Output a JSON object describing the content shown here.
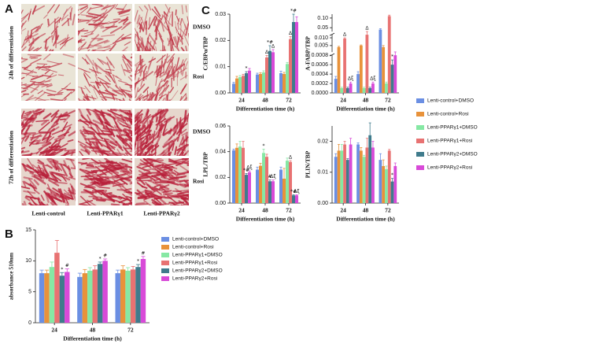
{
  "panel_labels": [
    "A",
    "B",
    "C"
  ],
  "panel_a": {
    "row_groups": [
      "24h of differentiation",
      "72h of differentiation"
    ],
    "row_labels": [
      "DMSO",
      "Rosi",
      "DMSO",
      "Rosi"
    ],
    "column_labels": [
      "Lenti-control",
      "Lenti-PPARγ1",
      "Lenti-PPARγ2"
    ]
  },
  "chart_data": [
    {
      "type": "bar",
      "ylabel": "absorbance 510nm",
      "xlabel": "Differentiation time (h)",
      "legend": "right",
      "categories": [
        "24",
        "48",
        "72"
      ],
      "ylim": [
        0,
        15
      ],
      "yticks": [
        0,
        5,
        10,
        15
      ],
      "series": [
        {
          "name": "Lenti-control+DMSO",
          "color": "#6b8fe3",
          "values": [
            8.0,
            7.4,
            8.0
          ],
          "errors": [
            0.5,
            0.6,
            0.5
          ],
          "annotations": [
            null,
            null,
            null
          ]
        },
        {
          "name": "Lenti-control+Rosi",
          "color": "#e8923a",
          "values": [
            8.0,
            8.0,
            8.6
          ],
          "errors": [
            0.5,
            0.6,
            0.6
          ],
          "annotations": [
            null,
            null,
            null
          ]
        },
        {
          "name": "Lenti-PPARγ1+DMSO",
          "color": "#86e8a4",
          "values": [
            9.0,
            8.4,
            8.4
          ],
          "errors": [
            0.8,
            0.5,
            0.5
          ],
          "annotations": [
            null,
            null,
            null
          ]
        },
        {
          "name": "Lenti-PPARγ1+Rosi",
          "color": "#e87272",
          "values": [
            11.3,
            8.6,
            8.6
          ],
          "errors": [
            2.0,
            0.6,
            0.5
          ],
          "annotations": [
            null,
            null,
            null
          ]
        },
        {
          "name": "Lenti-PPARγ2+DMSO",
          "color": "#3f7b8c",
          "values": [
            7.6,
            9.5,
            9.0
          ],
          "errors": [
            0.5,
            0.3,
            0.4
          ],
          "annotations": [
            "*",
            "*",
            "*"
          ]
        },
        {
          "name": "Lenti-PPARγ2+Rosi",
          "color": "#d84ad8",
          "values": [
            8.2,
            10.0,
            10.3
          ],
          "errors": [
            0.5,
            0.3,
            0.4
          ],
          "annotations": [
            "#",
            "#",
            "#"
          ]
        }
      ]
    },
    {
      "type": "bar",
      "ylabel": "C/EBPα/TBP",
      "xlabel": "Differentiation time (h)",
      "categories": [
        "24",
        "48",
        "72"
      ],
      "ylim": [
        0,
        0.03
      ],
      "yticks": [
        {
          "value": 0,
          "label": "0.00"
        },
        {
          "value": 0.01,
          "label": "0.01"
        },
        {
          "value": 0.02,
          "label": "0.02"
        },
        {
          "value": 0.03,
          "label": "0.03"
        }
      ],
      "series": [
        {
          "name": "Lenti-control+DMSO",
          "color": "#6b8fe3",
          "values": [
            0.0035,
            0.007,
            0.0075
          ],
          "errors": [
            0.0005,
            0.0005,
            0.0008
          ],
          "annotations": [
            null,
            null,
            null
          ]
        },
        {
          "name": "Lenti-control+Rosi",
          "color": "#e8923a",
          "values": [
            0.0055,
            0.0072,
            0.0072
          ],
          "errors": [
            0.0008,
            0.0005,
            0.0006
          ],
          "annotations": [
            null,
            null,
            null
          ]
        },
        {
          "name": "Lenti-PPARγ1+DMSO",
          "color": "#86e8a4",
          "values": [
            0.006,
            0.0078,
            0.011
          ],
          "errors": [
            0.0006,
            0.0006,
            0.0006
          ],
          "annotations": [
            null,
            null,
            null
          ]
        },
        {
          "name": "Lenti-PPARγ1+Rosi",
          "color": "#e87272",
          "values": [
            0.0065,
            0.0135,
            0.0205
          ],
          "errors": [
            0.0006,
            0.0008,
            0.001
          ],
          "annotations": [
            null,
            "Δ",
            "Δ"
          ]
        },
        {
          "name": "Lenti-PPARγ2+DMSO",
          "color": "#3f7b8c",
          "values": [
            0.0075,
            0.016,
            0.027
          ],
          "errors": [
            0.0006,
            0.002,
            0.003
          ],
          "annotations": [
            "*",
            "*#",
            "*#"
          ]
        },
        {
          "name": "Lenti-PPARγ2+Rosi",
          "color": "#d84ad8",
          "values": [
            0.0085,
            0.0155,
            0.027
          ],
          "errors": [
            0.0008,
            0.001,
            0.002
          ],
          "annotations": [
            null,
            "Δ",
            null
          ]
        }
      ]
    },
    {
      "type": "bar",
      "ylabel": "A-FABP/TBP",
      "xlabel": "Differentiation time (h)",
      "legend": "lower right",
      "categories": [
        "24",
        "48",
        "72"
      ],
      "segments": [
        {
          "ylim": [
            0,
            0.0008
          ],
          "yticks": [
            {
              "value": 0,
              "label": "0.0000"
            },
            0.0002,
            0.0004,
            0.0006,
            0.0008
          ]
        },
        {
          "ylim": [
            0.0008,
            0.012
          ],
          "yticks": [
            0.005,
            {
              "value": 0.01,
              "label": "0.010"
            }
          ]
        },
        {
          "ylim": [
            0.03,
            0.12
          ],
          "yticks": [
            0.05,
            {
              "value": 0.1,
              "label": "0.10"
            }
          ]
        }
      ],
      "series": [
        {
          "name": "Lenti-control+DMSO",
          "color": "#6b8fe3",
          "values": [
            0.0003,
            0.0004,
            0.04
          ],
          "errors": [
            5e-05,
            5e-05,
            0.005
          ],
          "annotations": [
            null,
            null,
            null
          ]
        },
        {
          "name": "Lenti-control+Rosi",
          "color": "#e8923a",
          "values": [
            0.004,
            0.005,
            0.004
          ],
          "errors": [
            0.0005,
            0.0004,
            0.001
          ],
          "annotations": [
            null,
            null,
            null
          ]
        },
        {
          "name": "Lenti-PPARγ1+DMSO",
          "color": "#86e8a4",
          "values": [
            0.0001,
            0.0001,
            0.0002
          ],
          "errors": [
            2e-05,
            2e-05,
            3e-05
          ],
          "annotations": [
            null,
            null,
            null
          ]
        },
        {
          "name": "Lenti-PPARγ1+Rosi",
          "color": "#e87272",
          "values": [
            0.0095,
            0.012,
            0.11
          ],
          "errors": [
            0.0005,
            0.0005,
            0.005
          ],
          "annotations": [
            "Δ",
            "Δ",
            null
          ]
        },
        {
          "name": "Lenti-PPARγ2+DMSO",
          "color": "#3f7b8c",
          "values": [
            0.0001,
            0.0001,
            0.0006
          ],
          "errors": [
            2e-05,
            2e-05,
            0.0001
          ],
          "annotations": [
            null,
            null,
            "*"
          ]
        },
        {
          "name": "Lenti-PPARγ2+Rosi",
          "color": "#d84ad8",
          "values": [
            0.0002,
            0.0002,
            0.0008
          ],
          "errors": [
            3e-05,
            3e-05,
            0.0001
          ],
          "annotations": [
            "Δξ",
            "Δξ",
            null
          ]
        }
      ]
    },
    {
      "type": "bar",
      "ylabel": "LPL/TBP",
      "xlabel": "Differentiation time (h)",
      "categories": [
        "24",
        "48",
        "72"
      ],
      "ylim": [
        0,
        0.06
      ],
      "yticks": [
        {
          "value": 0,
          "label": "0.00"
        },
        0.02,
        0.04,
        0.06
      ],
      "series": [
        {
          "name": "Lenti-control+DMSO",
          "color": "#6b8fe3",
          "values": [
            0.041,
            0.026,
            0.026
          ],
          "errors": [
            0.001,
            0.002,
            0.002
          ],
          "annotations": [
            null,
            null,
            null
          ]
        },
        {
          "name": "Lenti-control+Rosi",
          "color": "#e8923a",
          "values": [
            0.043,
            0.029,
            0.019
          ],
          "errors": [
            0.003,
            0.002,
            0.008
          ],
          "annotations": [
            null,
            null,
            null
          ]
        },
        {
          "name": "Lenti-PPARγ1+DMSO",
          "color": "#86e8a4",
          "values": [
            0.044,
            0.039,
            0.033
          ],
          "errors": [
            0.004,
            0.003,
            0.002
          ],
          "annotations": [
            null,
            "*",
            null
          ]
        },
        {
          "name": "Lenti-PPARγ1+Rosi",
          "color": "#e87272",
          "values": [
            0.043,
            0.036,
            0.032
          ],
          "errors": [
            0.005,
            0.002,
            0.001
          ],
          "annotations": [
            null,
            null,
            "Δ"
          ]
        },
        {
          "name": "Lenti-PPARγ2+DMSO",
          "color": "#3f7b8c",
          "values": [
            0.022,
            0.017,
            0.006
          ],
          "errors": [
            0.001,
            0.001,
            0.0005
          ],
          "annotations": [
            "*#",
            "#",
            "*#"
          ]
        },
        {
          "name": "Lenti-PPARγ2+Rosi",
          "color": "#d84ad8",
          "values": [
            0.024,
            0.017,
            0.006
          ],
          "errors": [
            0.001,
            0.001,
            0.0005
          ],
          "annotations": [
            "Δξ",
            "Δξ",
            "Δξ"
          ]
        }
      ]
    },
    {
      "type": "bar",
      "ylabel": "PLIN/TBP",
      "xlabel": "Differentiation time (h)",
      "categories": [
        "24",
        "48",
        "72"
      ],
      "ylim": [
        0,
        0.025
      ],
      "yticks": [
        {
          "value": 0,
          "label": "0.00"
        },
        0.01,
        0.02
      ],
      "series": [
        {
          "name": "Lenti-control+DMSO",
          "color": "#6b8fe3",
          "values": [
            0.015,
            0.019,
            0.014
          ],
          "errors": [
            0.001,
            0.0005,
            0.002
          ],
          "annotations": [
            null,
            null,
            null
          ]
        },
        {
          "name": "Lenti-control+Rosi",
          "color": "#e8923a",
          "values": [
            0.017,
            0.017,
            0.012
          ],
          "errors": [
            0.002,
            0.001,
            0.002
          ],
          "annotations": [
            null,
            null,
            null
          ]
        },
        {
          "name": "Lenti-PPARγ1+DMSO",
          "color": "#86e8a4",
          "values": [
            0.017,
            0.015,
            0.011
          ],
          "errors": [
            0.002,
            0.0005,
            0.001
          ],
          "annotations": [
            null,
            null,
            null
          ]
        },
        {
          "name": "Lenti-PPARγ1+Rosi",
          "color": "#e87272",
          "values": [
            0.019,
            0.018,
            0.017
          ],
          "errors": [
            0.001,
            0.003,
            0.0004
          ],
          "annotations": [
            null,
            null,
            null
          ]
        },
        {
          "name": "Lenti-PPARγ2+DMSO",
          "color": "#3f7b8c",
          "values": [
            0.014,
            0.022,
            0.007
          ],
          "errors": [
            0.0004,
            0.004,
            0.001
          ],
          "annotations": [
            null,
            null,
            "*"
          ]
        },
        {
          "name": "Lenti-PPARγ2+Rosi",
          "color": "#d84ad8",
          "values": [
            0.019,
            0.018,
            0.012
          ],
          "errors": [
            0.002,
            0.002,
            0.001
          ],
          "annotations": [
            null,
            null,
            null
          ]
        }
      ]
    }
  ]
}
